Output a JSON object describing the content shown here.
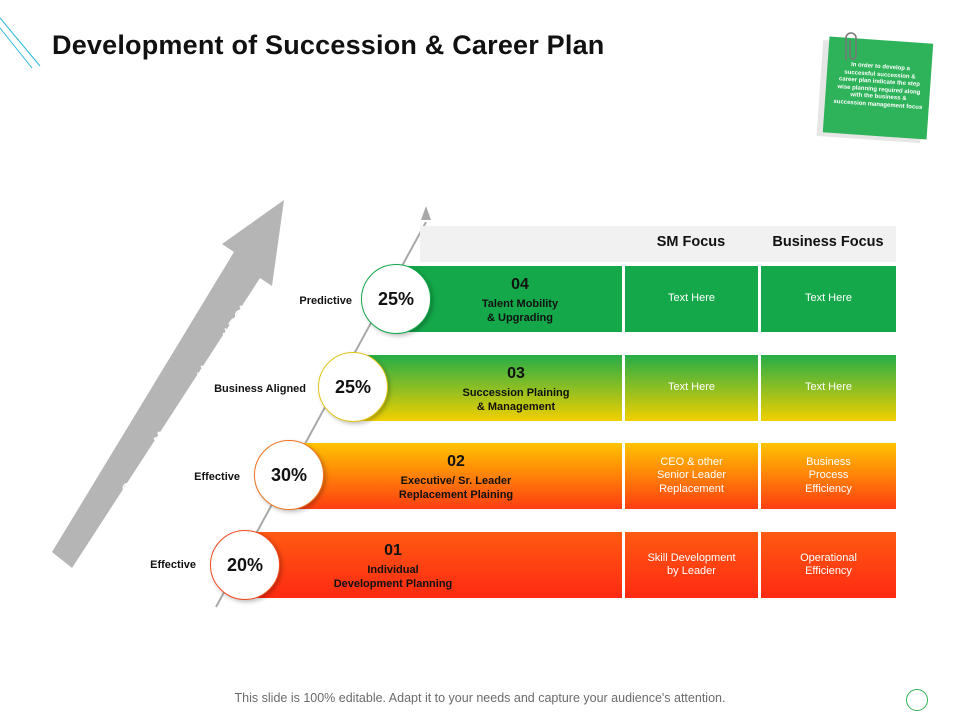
{
  "title": "Development of Succession & Career Plan",
  "note_text": "In order to develop a successful succession & career plan indicate the step wise planning required along with the business & succession management focus",
  "arrow_label": "Success Management Impact/ ROI",
  "headers": {
    "sm_focus": "SM Focus",
    "business_focus": "Business Focus"
  },
  "rows": [
    {
      "number": "04",
      "label_line1": "Talent Mobility",
      "label_line2": "& Upgrading",
      "percent": "25%",
      "side_label": "Predictive",
      "sm_line1": "Text Here",
      "sm_line2": "",
      "sm_line3": "",
      "bf_line1": "Text Here",
      "bf_line2": "",
      "bf_line3": ""
    },
    {
      "number": "03",
      "label_line1": "Succession Plaining",
      "label_line2": "& Management",
      "percent": "25%",
      "side_label": "Business Aligned",
      "sm_line1": "Text Here",
      "sm_line2": "",
      "sm_line3": "",
      "bf_line1": "Text Here",
      "bf_line2": "",
      "bf_line3": ""
    },
    {
      "number": "02",
      "label_line1": "Executive/  Sr. Leader",
      "label_line2": "Replacement Plaining",
      "percent": "30%",
      "side_label": "Effective",
      "sm_line1": "CEO & other",
      "sm_line2": "Senior Leader",
      "sm_line3": "Replacement",
      "bf_line1": "Business",
      "bf_line2": "Process",
      "bf_line3": "Efficiency"
    },
    {
      "number": "01",
      "label_line1": "Individual",
      "label_line2": "Development  Planning",
      "percent": "20%",
      "side_label": "Effective",
      "sm_line1": "Skill Development",
      "sm_line2": "by Leader",
      "sm_line3": "",
      "bf_line1": "Operational",
      "bf_line2": "Efficiency",
      "bf_line3": ""
    }
  ],
  "colors": {
    "green": "#13a84a",
    "row4": "#14a84a",
    "row3_top": "#25ad47",
    "row3_bottom": "#f2cf00",
    "row2_top": "#ffc400",
    "row2_bottom": "#ff3d12",
    "row1_top": "#ff5a12",
    "row1_bottom": "#ff2a12",
    "arrow": "#b5b5b5"
  },
  "footer": "This slide is 100% editable. Adapt it to your needs and capture your audience's attention."
}
